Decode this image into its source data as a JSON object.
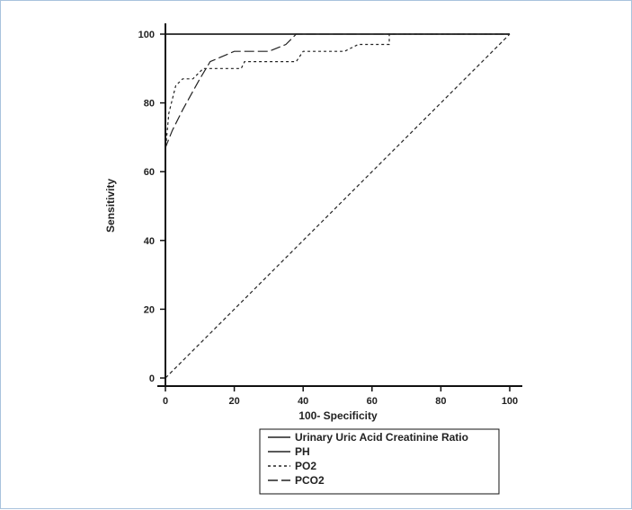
{
  "chart_data": {
    "type": "line",
    "title": "",
    "xlabel": "100- Specificity",
    "ylabel": "Sensitivity",
    "xlim": [
      0,
      100
    ],
    "ylim": [
      0,
      100
    ],
    "x_ticks": [
      0,
      20,
      40,
      60,
      80,
      100
    ],
    "y_ticks": [
      0,
      20,
      40,
      60,
      80,
      100
    ],
    "grid": false,
    "legend_position": "below",
    "series": [
      {
        "name": "Urinary Uric Acid Creatinine Ratio",
        "style": "solid",
        "points": [
          [
            0,
            0
          ],
          [
            0,
            100
          ],
          [
            100,
            100
          ]
        ]
      },
      {
        "name": "PH",
        "style": "solid",
        "points": [
          [
            0,
            0
          ],
          [
            0,
            100
          ],
          [
            100,
            100
          ]
        ]
      },
      {
        "name": "PO2",
        "style": "dotted",
        "points": [
          [
            0,
            0
          ],
          [
            0,
            66
          ],
          [
            1,
            77
          ],
          [
            3,
            85
          ],
          [
            5,
            87
          ],
          [
            8,
            87
          ],
          [
            11,
            90
          ],
          [
            22,
            90
          ],
          [
            23,
            92
          ],
          [
            38,
            92
          ],
          [
            40,
            95
          ],
          [
            52,
            95
          ],
          [
            56,
            97
          ],
          [
            65,
            97
          ],
          [
            65,
            100
          ],
          [
            100,
            100
          ]
        ]
      },
      {
        "name": "PCO2",
        "style": "dashed",
        "points": [
          [
            0,
            0
          ],
          [
            0,
            67
          ],
          [
            2,
            72
          ],
          [
            5,
            78
          ],
          [
            10,
            87
          ],
          [
            13,
            92
          ],
          [
            20,
            95
          ],
          [
            30,
            95
          ],
          [
            35,
            97
          ],
          [
            38,
            100
          ],
          [
            100,
            100
          ]
        ]
      },
      {
        "name": "",
        "style": "reference-dashed",
        "points": [
          [
            0,
            0
          ],
          [
            100,
            100
          ]
        ]
      }
    ]
  }
}
